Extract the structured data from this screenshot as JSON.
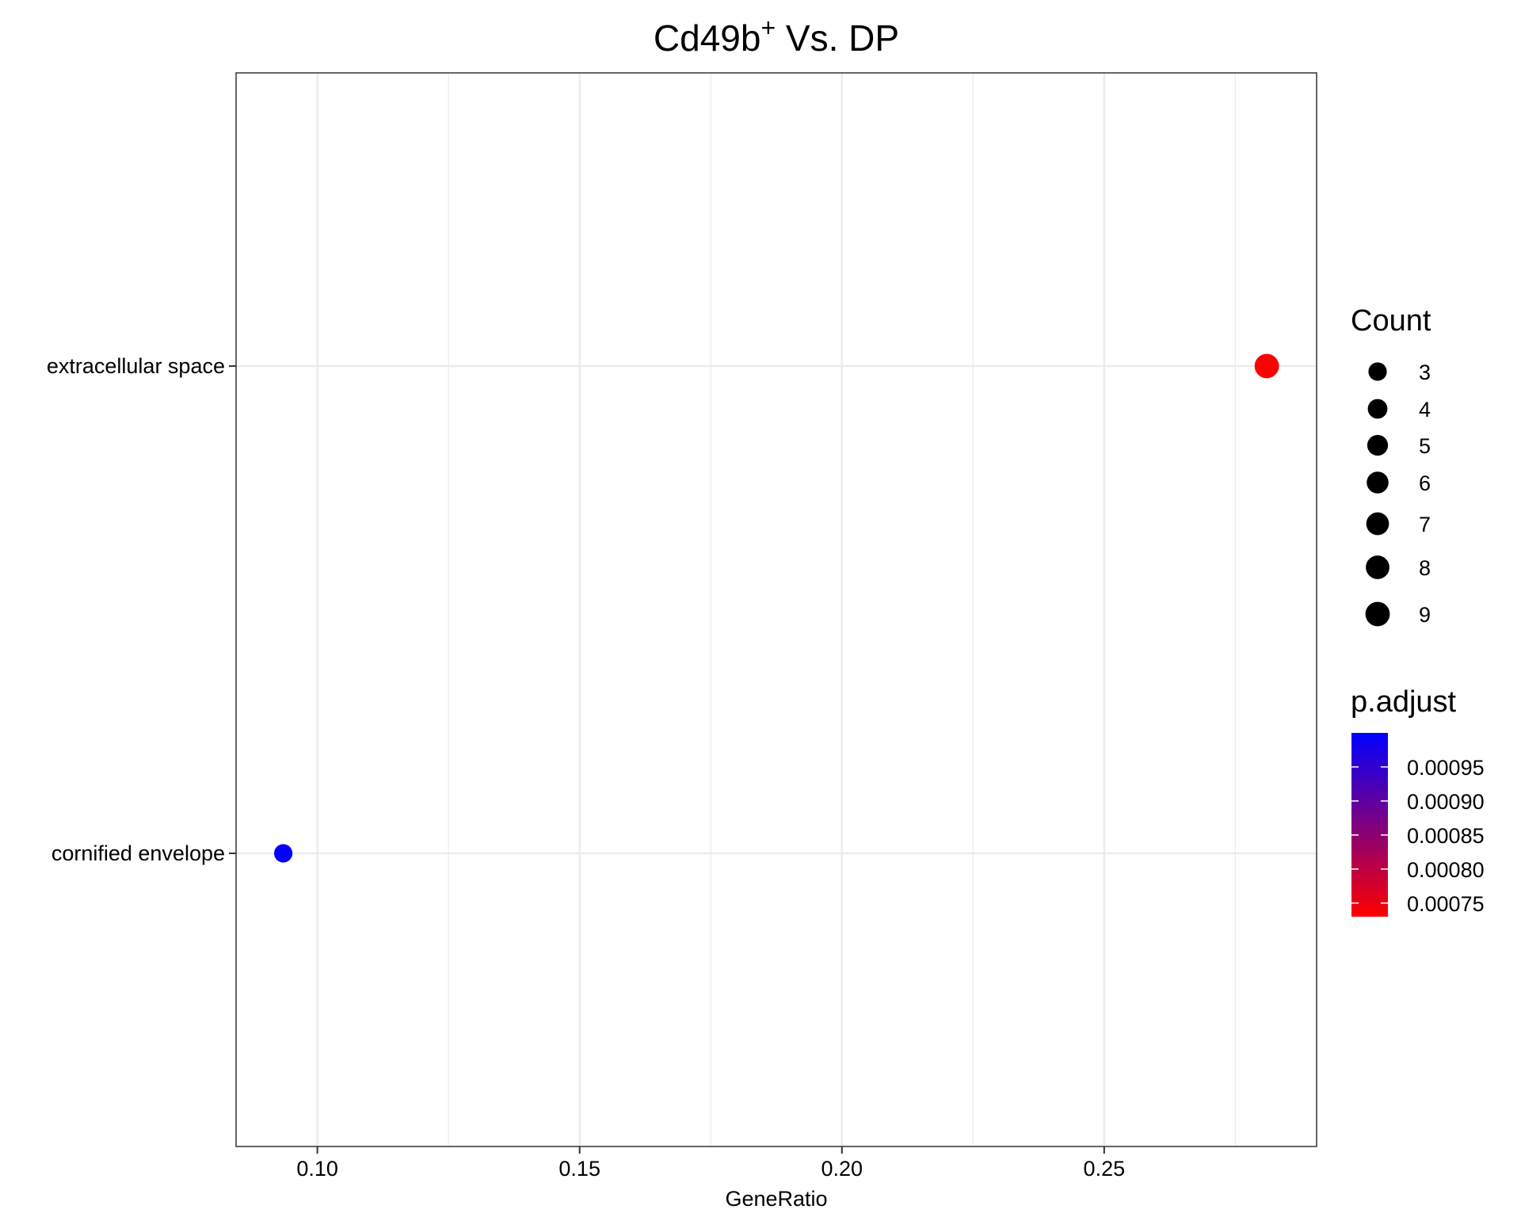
{
  "chart_data": {
    "type": "scatter",
    "title_main": "Cd49b",
    "title_sup": "+",
    "title_rest": " Vs. DP",
    "xlabel": "GeneRatio",
    "ylabel": "",
    "xlim": [
      0.0845,
      0.2905
    ],
    "x_ticks": [
      0.1,
      0.15,
      0.2,
      0.25
    ],
    "x_tick_labels": [
      "0.10",
      "0.15",
      "0.20",
      "0.25"
    ],
    "categories": [
      "extracellular space",
      "cornified envelope"
    ],
    "grid": true,
    "points": [
      {
        "category": "extracellular space",
        "x": 0.281,
        "count": 9,
        "p_adjust": 0.00073
      },
      {
        "category": "cornified envelope",
        "x": 0.0935,
        "count": 3,
        "p_adjust": 0.000995
      }
    ],
    "legend_count": {
      "title": "Count",
      "labels": [
        "3",
        "4",
        "5",
        "6",
        "7",
        "8",
        "9"
      ],
      "values": [
        3,
        4,
        5,
        6,
        7,
        8,
        9
      ],
      "placement": "right"
    },
    "legend_padjust": {
      "title": "p.adjust",
      "tick_values": [
        0.00095,
        0.0009,
        0.00085,
        0.0008,
        0.00075
      ],
      "tick_labels": [
        "0.00095",
        "0.00090",
        "0.00085",
        "0.00080",
        "0.00075"
      ],
      "range": [
        0.00073,
        0.001
      ],
      "color_low": "#ff0000",
      "color_high": "#0000ff",
      "placement": "right"
    }
  }
}
